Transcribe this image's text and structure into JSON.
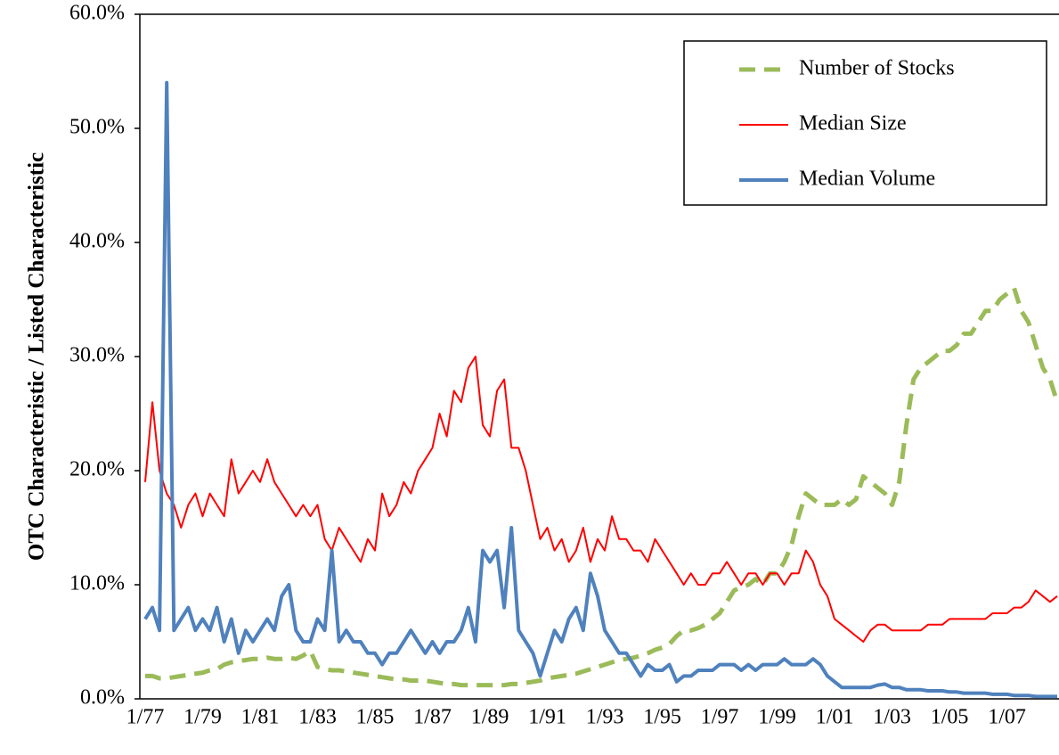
{
  "chart_data": {
    "type": "line",
    "y_label": "OTC Characteristic / Listed Characteristic",
    "categories": [
      "1/77",
      null,
      null,
      null,
      null,
      null,
      null,
      null,
      "1/79",
      null,
      null,
      null,
      null,
      null,
      null,
      null,
      "1/81",
      null,
      null,
      null,
      null,
      null,
      null,
      null,
      "1/83",
      null,
      null,
      null,
      null,
      null,
      null,
      null,
      "1/85",
      null,
      null,
      null,
      null,
      null,
      null,
      null,
      "1/87",
      null,
      null,
      null,
      null,
      null,
      null,
      null,
      "1/89",
      null,
      null,
      null,
      null,
      null,
      null,
      null,
      "1/91",
      null,
      null,
      null,
      null,
      null,
      null,
      null,
      "1/93",
      null,
      null,
      null,
      null,
      null,
      null,
      null,
      "1/95",
      null,
      null,
      null,
      null,
      null,
      null,
      null,
      "1/97",
      null,
      null,
      null,
      null,
      null,
      null,
      null,
      "1/99",
      null,
      null,
      null,
      null,
      null,
      null,
      null,
      "1/01",
      null,
      null,
      null,
      null,
      null,
      null,
      null,
      "1/03",
      null,
      null,
      null,
      null,
      null,
      null,
      null,
      "1/05",
      null,
      null,
      null,
      null,
      null,
      null,
      null,
      "1/07",
      null,
      null,
      null,
      null,
      null,
      null,
      null
    ],
    "series": [
      {
        "name": "Number of Stocks",
        "color": "#9bbb59",
        "dashed": true,
        "values": [
          2,
          2,
          1.8,
          1.8,
          1.9,
          2,
          2.1,
          2.2,
          2.3,
          2.5,
          2.6,
          3,
          3.2,
          3.3,
          3.4,
          3.5,
          3.5,
          3.6,
          3.5,
          3.5,
          3.6,
          3.5,
          3.8,
          4.2,
          2.8,
          2.6,
          2.5,
          2.5,
          2.4,
          2.3,
          2.2,
          2.1,
          2,
          1.9,
          1.8,
          1.7,
          1.7,
          1.6,
          1.6,
          1.6,
          1.5,
          1.4,
          1.3,
          1.3,
          1.2,
          1.2,
          1.2,
          1.2,
          1.2,
          1.2,
          1.2,
          1.3,
          1.3,
          1.4,
          1.5,
          1.6,
          1.8,
          1.9,
          2,
          2.1,
          2.2,
          2.4,
          2.6,
          2.8,
          3,
          3.2,
          3.4,
          3.5,
          3.6,
          3.8,
          4,
          4.3,
          4.5,
          4.8,
          5.5,
          6,
          6,
          6.2,
          6.5,
          7,
          7.5,
          8.5,
          9.5,
          9.8,
          10,
          10.5,
          10,
          11,
          11,
          12,
          13.5,
          16,
          18,
          17.5,
          17,
          17,
          17,
          17.5,
          17,
          17.5,
          19.5,
          19,
          18.5,
          18,
          17,
          19,
          24,
          28,
          29,
          29.5,
          30,
          30.5,
          30.5,
          31,
          32,
          32,
          33,
          34,
          34,
          35,
          35.5,
          36,
          34,
          33,
          31,
          29,
          28,
          26
        ]
      },
      {
        "name": "Median Size",
        "color": "#ff0000",
        "dashed": false,
        "values": [
          19,
          26,
          20,
          18,
          17,
          15,
          17,
          18,
          16,
          18,
          17,
          16,
          21,
          18,
          19,
          20,
          19,
          21,
          19,
          18,
          17,
          16,
          17,
          16,
          17,
          14,
          13,
          15,
          14,
          13,
          12,
          14,
          13,
          18,
          16,
          17,
          19,
          18,
          20,
          21,
          22,
          25,
          23,
          27,
          26,
          29,
          30,
          24,
          23,
          27,
          28,
          22,
          22,
          20,
          17,
          14,
          15,
          13,
          14,
          12,
          13,
          15,
          12,
          14,
          13,
          16,
          14,
          14,
          13,
          13,
          12,
          14,
          13,
          12,
          11,
          10,
          11,
          10,
          10,
          11,
          11,
          12,
          11,
          10,
          11,
          11,
          10,
          11,
          11,
          10,
          11,
          11,
          13,
          12,
          10,
          9,
          7,
          6.5,
          6,
          5.5,
          5,
          6,
          6.5,
          6.5,
          6,
          6,
          6,
          6,
          6,
          6.5,
          6.5,
          6.5,
          7,
          7,
          7,
          7,
          7,
          7,
          7.5,
          7.5,
          7.5,
          8,
          8,
          8.5,
          9.5,
          9,
          8.5,
          9
        ]
      },
      {
        "name": "Median Volume",
        "color": "#4f81bd",
        "dashed": false,
        "values": [
          7,
          8,
          6,
          54,
          6,
          7,
          8,
          6,
          7,
          6,
          8,
          5,
          7,
          4,
          6,
          5,
          6,
          7,
          6,
          9,
          10,
          6,
          5,
          5,
          7,
          6,
          13,
          5,
          6,
          5,
          5,
          4,
          4,
          3,
          4,
          4,
          5,
          6,
          5,
          4,
          5,
          4,
          5,
          5,
          6,
          8,
          5,
          13,
          12,
          13,
          8,
          15,
          6,
          5,
          4,
          2,
          4,
          6,
          5,
          7,
          8,
          6,
          11,
          9,
          6,
          5,
          4,
          4,
          3,
          2,
          3,
          2.5,
          2.5,
          3,
          1.5,
          2,
          2,
          2.5,
          2.5,
          2.5,
          3,
          3,
          3,
          2.5,
          3,
          2.5,
          3,
          3,
          3,
          3.5,
          3,
          3,
          3,
          3.5,
          3,
          2,
          1.5,
          1,
          1,
          1,
          1,
          1,
          1.2,
          1.3,
          1,
          1,
          0.8,
          0.8,
          0.8,
          0.7,
          0.7,
          0.7,
          0.6,
          0.6,
          0.5,
          0.5,
          0.5,
          0.5,
          0.4,
          0.4,
          0.4,
          0.3,
          0.3,
          0.3,
          0.2,
          0.2,
          0.2,
          0.2
        ]
      }
    ],
    "ylim": [
      0,
      60
    ],
    "yticks": [
      {
        "value": 0,
        "label": "0.0%"
      },
      {
        "value": 10,
        "label": "10.0%"
      },
      {
        "value": 20,
        "label": "20.0%"
      },
      {
        "value": 30,
        "label": "30.0%"
      },
      {
        "value": 40,
        "label": "40.0%"
      },
      {
        "value": 50,
        "label": "50.0%"
      },
      {
        "value": 60,
        "label": "60.0%"
      }
    ],
    "legend": "upper right"
  }
}
